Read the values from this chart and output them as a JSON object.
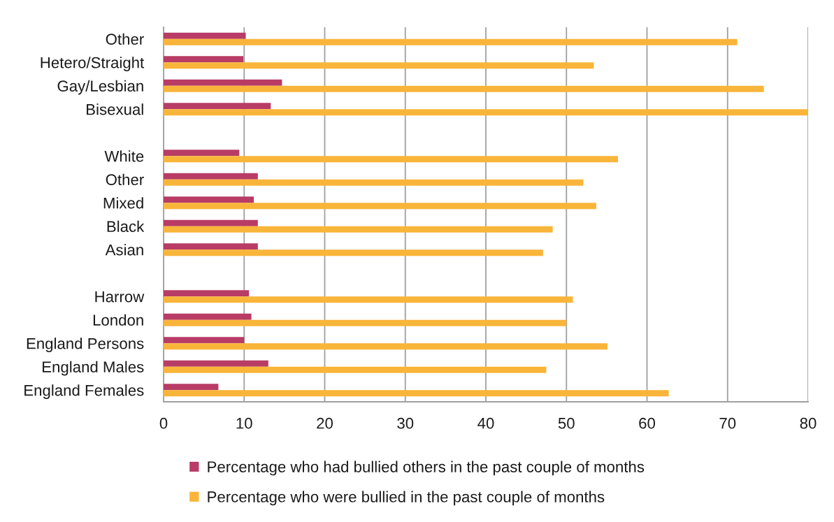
{
  "chart_data": {
    "type": "bar",
    "orientation": "horizontal",
    "categories": [
      "Other",
      "Hetero/Straight",
      "Gay/Lesbian",
      "Bisexual",
      null,
      "White",
      "Other",
      "Mixed",
      "Black",
      "Asian",
      null,
      "Harrow",
      "London",
      "England Persons",
      "England Males",
      "England Females"
    ],
    "series": [
      {
        "name": "Percentage who had bullied others in the past couple of months",
        "color": "#b83c65",
        "values": [
          10.2,
          9.9,
          14.7,
          13.3,
          null,
          9.4,
          11.7,
          11.2,
          11.7,
          11.7,
          null,
          10.6,
          10.9,
          10.0,
          13.0,
          6.8
        ]
      },
      {
        "name": "Percentage who were bullied in the past couple of months",
        "color": "#f9b53a",
        "values": [
          71.2,
          53.4,
          74.5,
          80.0,
          null,
          56.4,
          52.1,
          53.7,
          48.3,
          47.1,
          null,
          50.8,
          50.0,
          55.1,
          47.5,
          62.7
        ]
      }
    ],
    "xlim": [
      0,
      80
    ],
    "xticks": [
      0,
      10,
      20,
      30,
      40,
      50,
      60,
      70,
      80
    ],
    "grid": "x",
    "legend": "bottom"
  }
}
